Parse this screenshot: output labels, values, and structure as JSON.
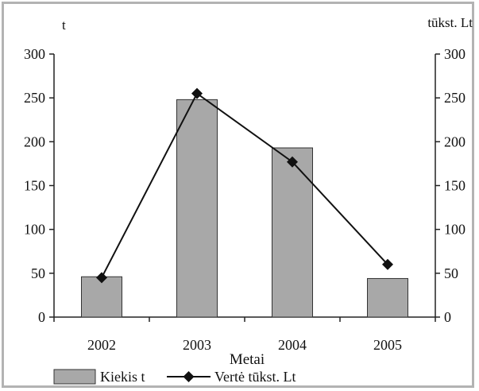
{
  "chart_data": {
    "type": "bar",
    "categories": [
      "2002",
      "2003",
      "2004",
      "2005"
    ],
    "series": [
      {
        "name": "Kiekis t",
        "type": "bar",
        "axis": "left",
        "values": [
          46,
          248,
          193,
          44
        ]
      },
      {
        "name": "Vertė tūkst. Lt",
        "type": "line",
        "axis": "right",
        "values": [
          45,
          255,
          177,
          60
        ]
      }
    ],
    "xlabel": "Metai",
    "ylabel_left": "t",
    "ylabel_right": "tūkst. Lt",
    "ylim": [
      0,
      300
    ],
    "yticks": [
      "0",
      "50",
      "100",
      "150",
      "200",
      "250",
      "300"
    ],
    "grid": false,
    "legend": "bottom",
    "colors": {
      "bar_fill": "#a8a8a8",
      "bar_stroke": "#333333",
      "line": "#111111",
      "frame": "#b3b3b3"
    }
  }
}
